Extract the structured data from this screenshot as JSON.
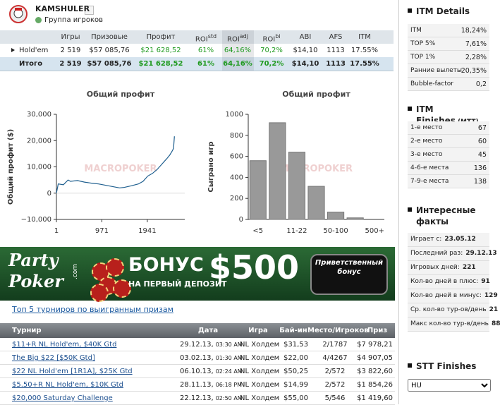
{
  "profile": {
    "name": "KAMSHULER",
    "group": "Группа игроков"
  },
  "summary": {
    "headers": [
      {
        "text": "Игры"
      },
      {
        "text": "Призовые"
      },
      {
        "text": "Профит"
      },
      {
        "text": "ROI",
        "sup": "std"
      },
      {
        "text": "ROI",
        "sup": "adj"
      },
      {
        "text": "ROI",
        "sup": "bi"
      },
      {
        "text": "ABI"
      },
      {
        "text": "AFS"
      },
      {
        "text": "ITM"
      }
    ],
    "rows": [
      {
        "label": "Hold'em",
        "cells": [
          "2 519",
          "$57 085,76",
          "$21 628,52",
          "61%",
          "64,16%",
          "70,2%",
          "$14,10",
          "1113",
          "17.55%"
        ]
      },
      {
        "label": "Итого",
        "cells": [
          "2 519",
          "$57 085,76",
          "$21 628,52",
          "61%",
          "64,16%",
          "70,2%",
          "$14,10",
          "1113",
          "17.55%"
        ]
      }
    ]
  },
  "chart_data": [
    {
      "type": "line",
      "title": "Общий профит",
      "y_label": "Общий профит ($)",
      "watermark": "MACROPOKER",
      "color": "#1f5f8f",
      "x": [
        1,
        40,
        150,
        250,
        300,
        450,
        600,
        750,
        900,
        1050,
        1200,
        1350,
        1450,
        1600,
        1750,
        1850,
        1950,
        2050,
        2150,
        2250,
        2350,
        2420,
        2470,
        2500,
        2519
      ],
      "values": [
        0,
        3500,
        3200,
        5000,
        4500,
        4800,
        4200,
        3800,
        3500,
        3000,
        2500,
        2000,
        2200,
        2800,
        3500,
        4500,
        6500,
        7500,
        9000,
        11000,
        13000,
        14500,
        16000,
        17000,
        21629
      ],
      "xlim": [
        1,
        2740
      ],
      "xticks": [
        1,
        971,
        1941
      ],
      "ylim": [
        -10000,
        30000
      ],
      "yticks": [
        {
          "value": 30000,
          "label": "30,000"
        },
        {
          "value": 20000,
          "label": "20,000"
        },
        {
          "value": 10000,
          "label": "10,000"
        },
        0,
        {
          "value": -10000,
          "label": "−10,000"
        }
      ]
    },
    {
      "type": "bar",
      "title": "Общий профит",
      "y_label": "Сыграно игр",
      "watermark": "MACROPOKER",
      "color": "#999999",
      "categories": [
        "<5",
        null,
        "11-22",
        null,
        "50-100",
        null,
        "500+"
      ],
      "values": [
        559,
        920,
        640,
        315,
        70,
        15,
        0
      ],
      "ylim": [
        0,
        1000
      ],
      "yticks": [
        0,
        200,
        400,
        600,
        800,
        1000
      ]
    }
  ],
  "banner": {
    "brand_line1": "Party",
    "brand_line2": "Poker",
    "brand_suffix": ".com",
    "headline": "БОНУС",
    "subline": "НА ПЕРВЫЙ ДЕПОЗИТ",
    "amount": "$500",
    "badge_line1": "Приветственный",
    "badge_line2": "бонус"
  },
  "tournaments": {
    "title": "Топ 5 турниров по выигранным призам",
    "headers": [
      "Турнир",
      "Дата",
      "Игра",
      "Бай-ин",
      "Место/Игроков",
      "Приз"
    ],
    "rows": [
      {
        "name": "$11+R NL Hold'em, $40K Gtd",
        "date": "29.12.13,",
        "time": "03:30 AM",
        "game": "NL Холдем",
        "buyin": "$31,53",
        "place": "2/1787",
        "prize": "$7 978,21"
      },
      {
        "name": "The Big $22 [$50K Gtd]",
        "date": "03.02.13,",
        "time": "01:30 AM",
        "game": "NL Холдем",
        "buyin": "$22,00",
        "place": "4/4267",
        "prize": "$4 907,05"
      },
      {
        "name": "$22 NL Hold'em [1R1A], $25K Gtd",
        "date": "06.10.13,",
        "time": "02:24 AM",
        "game": "NL Холдем",
        "buyin": "$50,25",
        "place": "2/572",
        "prize": "$3 822,60"
      },
      {
        "name": "$5.50+R NL Hold'em, $10K Gtd",
        "date": "28.11.13,",
        "time": "06:18 PM",
        "game": "NL Холдем",
        "buyin": "$14,99",
        "place": "2/572",
        "prize": "$1 854,26"
      },
      {
        "name": "$20,000 Saturday Challenge",
        "date": "22.12.13,",
        "time": "02:50 AM",
        "game": "NL Холдем",
        "buyin": "$55,00",
        "place": "5/546",
        "prize": "$1 419,60"
      }
    ]
  },
  "sidebar": {
    "itm_details": {
      "title": "ITM Details",
      "rows": [
        [
          "ITM",
          "18,24%"
        ],
        [
          "TOP 5%",
          "7,61%"
        ],
        [
          "TOP 1%",
          "2,28%"
        ],
        [
          "Ранние вылеты",
          "20,35%"
        ],
        [
          "Bubble-factor",
          "0,2"
        ]
      ]
    },
    "itm_finishes": {
      "title": "ITM Finishes",
      "note": "(MTT)",
      "rows": [
        [
          "1-е место",
          "67"
        ],
        [
          "2-е место",
          "60"
        ],
        [
          "3-е место",
          "45"
        ],
        [
          "4-6-е места",
          "136"
        ],
        [
          "7-9-е места",
          "138"
        ]
      ]
    },
    "facts": {
      "title": "Интересные факты",
      "rows": [
        [
          "Играет с:",
          "23.05.12"
        ],
        [
          "Последний раз:",
          "29.12.13"
        ],
        [
          "Игровых дней:",
          "221"
        ],
        [
          "Кол-во дней в плюс:",
          "91"
        ],
        [
          "Кол-во дней в минус:",
          "129"
        ],
        [
          "Ср. кол-во тур-ов/день",
          "21"
        ],
        [
          "Макс кол-во тур-в/день",
          "88"
        ]
      ]
    },
    "stt": {
      "title": "STT Finishes",
      "selected": "HU"
    }
  }
}
